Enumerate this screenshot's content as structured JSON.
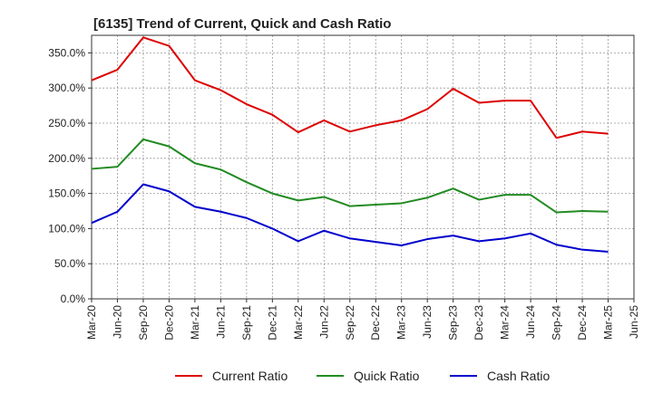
{
  "chart_data": {
    "type": "line",
    "title": "[6135]  Trend of Current, Quick and Cash Ratio",
    "xlabel": "",
    "ylabel": "",
    "ylim": [
      0,
      375
    ],
    "yticks": [
      0,
      50,
      100,
      150,
      200,
      250,
      300,
      350
    ],
    "ytick_labels": [
      "0.0%",
      "50.0%",
      "100.0%",
      "150.0%",
      "200.0%",
      "250.0%",
      "300.0%",
      "350.0%"
    ],
    "xtick_labels": [
      "Mar-20",
      "Jun-20",
      "Sep-20",
      "Dec-20",
      "Mar-21",
      "Jun-21",
      "Sep-21",
      "Dec-21",
      "Mar-22",
      "Jun-22",
      "Sep-22",
      "Dec-22",
      "Mar-23",
      "Jun-23",
      "Sep-23",
      "Dec-23",
      "Mar-24",
      "Jun-24",
      "Sep-24",
      "Dec-24",
      "Mar-25",
      "Jun-25"
    ],
    "categories": [
      "Mar-20",
      "Jun-20",
      "Sep-20",
      "Dec-20",
      "Mar-21",
      "Jun-21",
      "Sep-21",
      "Dec-21",
      "Mar-22",
      "Jun-22",
      "Sep-22",
      "Dec-22",
      "Mar-23",
      "Jun-23",
      "Sep-23",
      "Dec-23",
      "Mar-24",
      "Jun-24",
      "Sep-24",
      "Dec-24",
      "Mar-25"
    ],
    "grid": true,
    "legend_position": "bottom",
    "series": [
      {
        "name": "Current Ratio",
        "color": "#dd0000",
        "values": [
          311,
          326,
          372,
          360,
          311,
          297,
          277,
          262,
          237,
          254,
          238,
          247,
          254,
          270,
          299,
          279,
          282,
          282,
          229,
          238,
          235
        ]
      },
      {
        "name": "Quick Ratio",
        "color": "#228b22",
        "values": [
          185,
          188,
          227,
          217,
          193,
          184,
          166,
          150,
          140,
          145,
          132,
          134,
          136,
          144,
          157,
          141,
          148,
          148,
          123,
          125,
          124
        ]
      },
      {
        "name": "Cash Ratio",
        "color": "#0000cc",
        "values": [
          108,
          124,
          163,
          153,
          131,
          124,
          115,
          100,
          82,
          97,
          86,
          81,
          76,
          85,
          90,
          82,
          86,
          93,
          77,
          70,
          67
        ]
      }
    ]
  }
}
